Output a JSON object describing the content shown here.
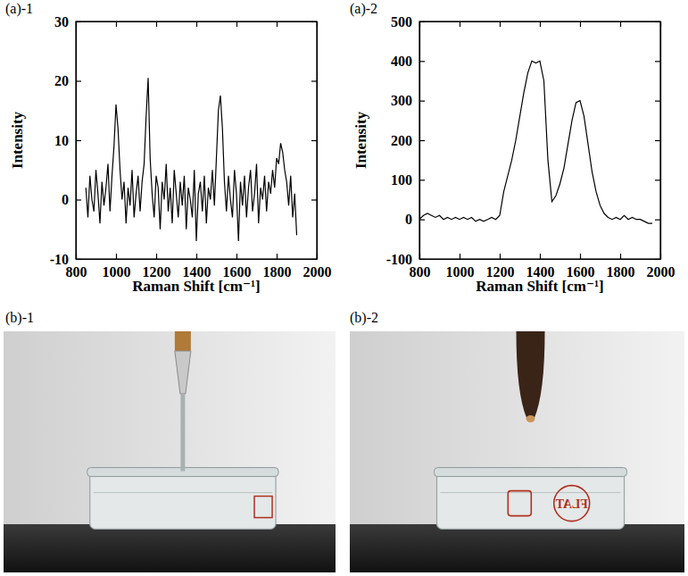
{
  "chart_data": [
    {
      "type": "line",
      "title": "(a)-1",
      "x_label": "Raman Shift [cm⁻¹]",
      "y_label": "Intensity",
      "xlim": [
        800,
        2000
      ],
      "xticks": [
        800,
        1000,
        1200,
        1400,
        1600,
        1800,
        2000
      ],
      "ylim": [
        -10,
        30
      ],
      "yticks": [
        -10,
        0,
        10,
        20,
        30
      ],
      "x": [
        850,
        860,
        870,
        880,
        890,
        900,
        910,
        920,
        930,
        940,
        950,
        960,
        970,
        980,
        990,
        1000,
        1010,
        1020,
        1030,
        1040,
        1050,
        1060,
        1070,
        1080,
        1090,
        1100,
        1110,
        1120,
        1130,
        1140,
        1150,
        1160,
        1170,
        1180,
        1190,
        1200,
        1210,
        1220,
        1230,
        1240,
        1250,
        1260,
        1270,
        1280,
        1290,
        1300,
        1310,
        1320,
        1330,
        1340,
        1350,
        1360,
        1370,
        1380,
        1390,
        1400,
        1410,
        1420,
        1430,
        1440,
        1450,
        1460,
        1470,
        1480,
        1490,
        1500,
        1510,
        1520,
        1530,
        1540,
        1550,
        1560,
        1570,
        1580,
        1590,
        1600,
        1610,
        1620,
        1630,
        1640,
        1650,
        1660,
        1670,
        1680,
        1690,
        1700,
        1710,
        1720,
        1730,
        1740,
        1750,
        1760,
        1770,
        1780,
        1790,
        1800,
        1810,
        1820,
        1830,
        1840,
        1850,
        1860,
        1870,
        1880,
        1890,
        1900
      ],
      "series": [
        {
          "color": "#000000",
          "values": [
            2,
            -3,
            4,
            0,
            -2,
            5,
            1,
            -4,
            3,
            -1,
            2,
            6,
            -2,
            4,
            9,
            16,
            12,
            5,
            0,
            3,
            -4,
            2,
            -1,
            5,
            -3,
            1,
            4,
            -2,
            3,
            6,
            14,
            20.5,
            7,
            1,
            -3,
            4,
            2,
            -5,
            3,
            0,
            6,
            -2,
            2,
            -4,
            5,
            1,
            -3,
            3,
            -1,
            4,
            -5,
            2,
            0,
            -3,
            5,
            -7,
            1,
            3,
            -2,
            4,
            -4,
            2,
            0,
            5,
            -1,
            7,
            15,
            17.5,
            12,
            3,
            -2,
            4,
            0,
            -3,
            5,
            1,
            -7,
            3,
            -1,
            4,
            -3,
            2,
            5,
            -2,
            1,
            6,
            -4,
            2,
            0,
            4,
            -2,
            3,
            1,
            5,
            2,
            7,
            6,
            9.5,
            8,
            5,
            3,
            -1,
            4,
            -3,
            1,
            -6
          ]
        }
      ]
    },
    {
      "type": "line",
      "title": "(a)-2",
      "x_label": "Raman Shift [cm⁻¹]",
      "y_label": "Intensity",
      "xlim": [
        800,
        2000
      ],
      "xticks": [
        800,
        1000,
        1200,
        1400,
        1600,
        1800,
        2000
      ],
      "ylim": [
        -100,
        500
      ],
      "yticks": [
        -100,
        0,
        100,
        200,
        300,
        400,
        500
      ],
      "x": [
        800,
        820,
        840,
        860,
        880,
        900,
        920,
        940,
        960,
        980,
        1000,
        1020,
        1040,
        1060,
        1080,
        1100,
        1120,
        1140,
        1160,
        1180,
        1200,
        1220,
        1240,
        1260,
        1280,
        1300,
        1320,
        1340,
        1360,
        1380,
        1400,
        1420,
        1440,
        1460,
        1480,
        1500,
        1520,
        1540,
        1560,
        1580,
        1600,
        1620,
        1640,
        1660,
        1680,
        1700,
        1720,
        1740,
        1760,
        1780,
        1800,
        1820,
        1840,
        1860,
        1880,
        1900,
        1920,
        1940,
        1960
      ],
      "series": [
        {
          "color": "#000000",
          "values": [
            0,
            10,
            15,
            10,
            5,
            10,
            0,
            5,
            0,
            5,
            0,
            5,
            0,
            5,
            -5,
            0,
            -5,
            0,
            5,
            0,
            10,
            70,
            110,
            150,
            200,
            260,
            320,
            370,
            400,
            395,
            400,
            350,
            150,
            45,
            60,
            90,
            130,
            190,
            250,
            295,
            300,
            260,
            190,
            120,
            70,
            35,
            15,
            5,
            0,
            5,
            0,
            10,
            0,
            5,
            0,
            0,
            -5,
            -10,
            -10
          ]
        }
      ]
    }
  ],
  "photos": [
    {
      "title": "(b)-1"
    },
    {
      "title": "(b)-2",
      "text": "FLAT"
    }
  ]
}
